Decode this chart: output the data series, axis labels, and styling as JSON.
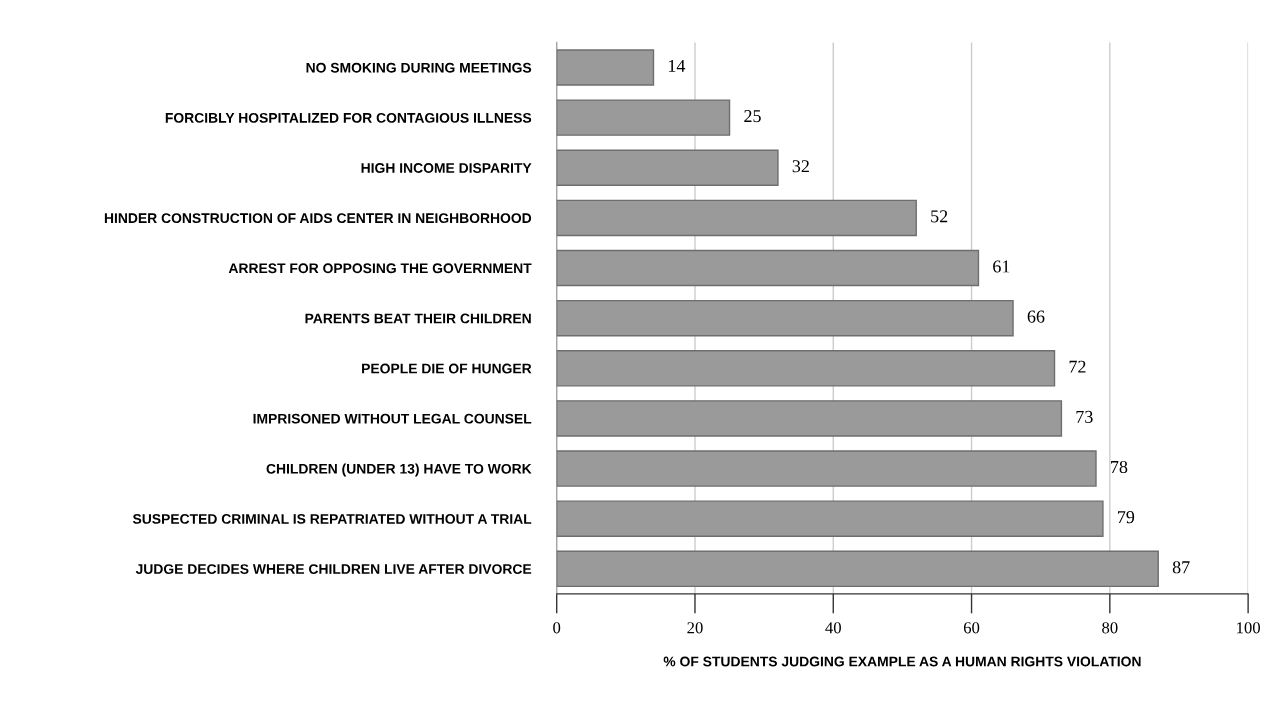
{
  "chart_data": {
    "type": "bar",
    "orientation": "horizontal",
    "xlabel": "% OF STUDENTS JUDGING EXAMPLE AS A HUMAN RIGHTS VIOLATION",
    "categories": [
      "NO SMOKING DURING MEETINGS",
      "FORCIBLY HOSPITALIZED FOR CONTAGIOUS ILLNESS",
      "HIGH INCOME DISPARITY",
      "HINDER CONSTRUCTION OF AIDS CENTER IN NEIGHBORHOOD",
      "ARREST FOR OPPOSING THE GOVERNMENT",
      "PARENTS BEAT THEIR CHILDREN",
      "PEOPLE DIE OF HUNGER",
      "IMPRISONED WITHOUT LEGAL COUNSEL",
      "CHILDREN (UNDER 13) HAVE TO WORK",
      "SUSPECTED CRIMINAL IS REPATRIATED WITHOUT A TRIAL",
      "JUDGE DECIDES WHERE CHILDREN LIVE AFTER DIVORCE"
    ],
    "values": [
      14,
      25,
      32,
      52,
      61,
      66,
      72,
      73,
      78,
      79,
      87
    ],
    "color": "#9a9a9a",
    "data_labels": true,
    "xlim": [
      0,
      100
    ],
    "xticks": [
      0,
      20,
      40,
      60,
      80,
      100
    ],
    "grid": "x"
  }
}
